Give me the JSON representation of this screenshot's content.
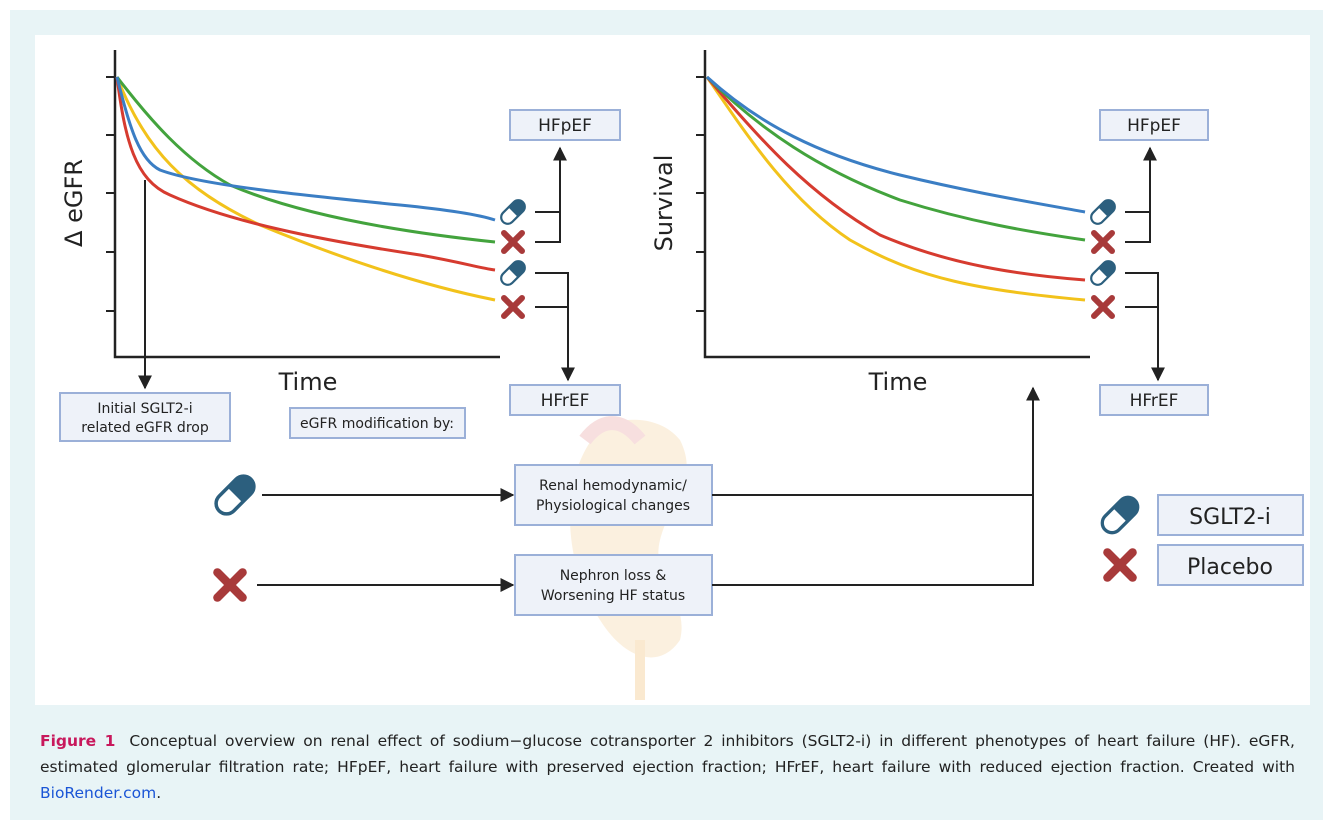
{
  "left_panel": {
    "y_label": "Δ eGFR",
    "x_label": "Time",
    "top_box": "HFpEF",
    "bottom_box": "HFrEF",
    "note": [
      "Initial SGLT2-i",
      "related eGFR drop"
    ]
  },
  "right_panel": {
    "y_label": "Survival",
    "x_label": "Time",
    "top_box": "HFpEF",
    "bottom_box": "HFrEF"
  },
  "mechanism": {
    "header": "eGFR modification by:",
    "treatment_box": [
      "Renal hemodynamic/",
      "Physiological changes"
    ],
    "placebo_box": [
      "Nephron loss &",
      "Worsening HF status"
    ]
  },
  "legend": {
    "treatment": "SGLT2-i",
    "placebo": "Placebo"
  },
  "caption": {
    "label": "Figure 1",
    "text": "Conceptual overview on renal effect of sodium−glucose cotransporter 2 inhibitors (SGLT2-i) in different phenotypes of heart failure (HF). eGFR, estimated glomerular filtration rate; HFpEF, heart failure with preserved ejection fraction; HFrEF, heart failure with reduced ejection fraction. Created with",
    "link": "BioRender.com",
    "end": "."
  }
}
